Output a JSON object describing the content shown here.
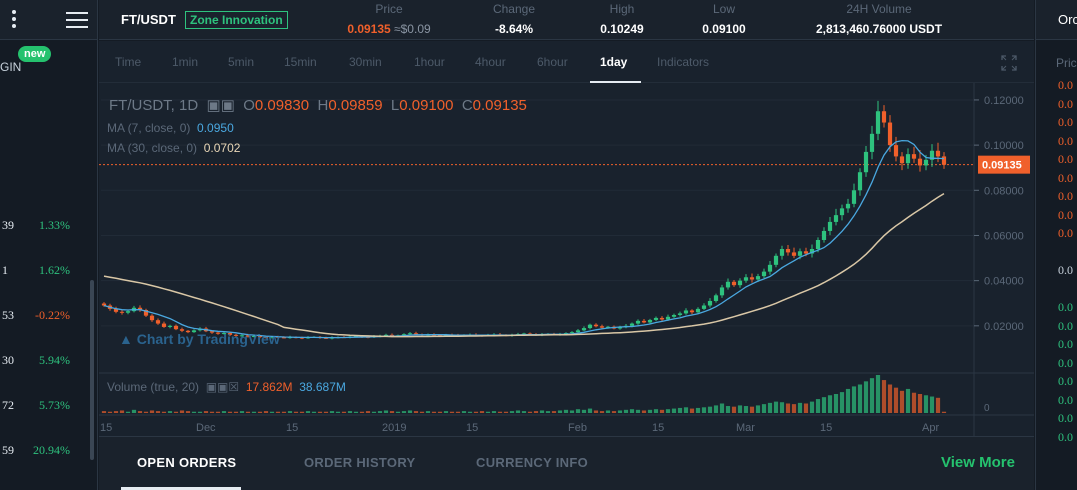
{
  "left": {
    "badge": "new",
    "margin_label": "GIN",
    "rows": [
      {
        "a": "39",
        "b": "1.33%",
        "dir": "up"
      },
      {
        "a": "1",
        "b": "1.62%",
        "dir": "up"
      },
      {
        "a": "53",
        "b": "-0.22%",
        "dir": "down"
      },
      {
        "a": "30",
        "b": "5.94%",
        "dir": "up"
      },
      {
        "a": "72",
        "b": "5.73%",
        "dir": "up"
      },
      {
        "a": "59",
        "b": "20.94%",
        "dir": "up"
      }
    ]
  },
  "header": {
    "pair": "FT/USDT",
    "zone": "Zone Innovation",
    "price_label": "Price",
    "price_value": "0.09135",
    "price_usd": "≈$0.09",
    "change_label": "Change",
    "change_value": "-8.64%",
    "high_label": "High",
    "high_value": "0.10249",
    "low_label": "Low",
    "low_value": "0.09100",
    "volume_label": "24H Volume",
    "volume_value": "2,813,460.76000 USDT"
  },
  "right": {
    "title": "Orc",
    "price_header": "Pric",
    "values": [
      {
        "v": "0.0",
        "dir": "down"
      },
      {
        "v": "0.0",
        "dir": "down"
      },
      {
        "v": "0.0",
        "dir": "down"
      },
      {
        "v": "0.0",
        "dir": "down"
      },
      {
        "v": "0.0",
        "dir": "down"
      },
      {
        "v": "0.0",
        "dir": "down"
      },
      {
        "v": "0.0",
        "dir": "down"
      },
      {
        "v": "0.0",
        "dir": "down"
      },
      {
        "v": "0.0",
        "dir": "down"
      },
      {
        "v": "",
        "dir": "none"
      },
      {
        "v": "0.0",
        "dir": "neutral"
      },
      {
        "v": "",
        "dir": "none"
      },
      {
        "v": "0.0",
        "dir": "up"
      },
      {
        "v": "0.0",
        "dir": "up"
      },
      {
        "v": "0.0",
        "dir": "up"
      },
      {
        "v": "0.0",
        "dir": "up"
      },
      {
        "v": "0.0",
        "dir": "up"
      },
      {
        "v": "0.0",
        "dir": "up"
      },
      {
        "v": "0.0",
        "dir": "up"
      },
      {
        "v": "0.0",
        "dir": "up"
      }
    ]
  },
  "toolbar": {
    "timeframes": [
      "Time",
      "1min",
      "5min",
      "15min",
      "30min",
      "1hour",
      "4hour",
      "6hour",
      "1day",
      "Indicators"
    ],
    "active": "1day"
  },
  "legend": {
    "symbol": "FT/USDT, 1D",
    "o_label": "O",
    "o_value": "0.09830",
    "h_label": "H",
    "h_value": "0.09859",
    "l_label": "L",
    "l_value": "0.09100",
    "c_label": "C",
    "c_value": "0.09135",
    "ma7_label": "MA (7, close, 0)",
    "ma7_value": "0.0950",
    "ma30_label": "MA (30, close, 0)",
    "ma30_value": "0.0702",
    "volume_label": "Volume (true, 20)",
    "volume_v1": "17.862M",
    "volume_v2": "38.687M",
    "watermark": "Chart by TradingView"
  },
  "chart_data": {
    "type": "candlestick",
    "price_axis_ticks": [
      "0.12000",
      "0.10000",
      "0.08000",
      "0.06000",
      "0.04000",
      "0.02000"
    ],
    "price_axis_values": [
      0.12,
      0.1,
      0.08,
      0.06,
      0.04,
      0.02
    ],
    "ylim": [
      0.0,
      0.1275
    ],
    "current_price_label": "0.09135",
    "current_price": 0.09135,
    "volume_axis_tick": "0",
    "x_ticks": [
      "15",
      "Dec",
      "15",
      "2019",
      "15",
      "Feb",
      "15",
      "Mar",
      "15",
      "Apr"
    ],
    "x_tick_days": [
      0,
      16,
      31,
      47,
      61,
      78,
      92,
      106,
      120,
      137
    ],
    "closes": [
      0.029,
      0.0275,
      0.0262,
      0.0258,
      0.0265,
      0.028,
      0.027,
      0.0245,
      0.0225,
      0.021,
      0.0195,
      0.02,
      0.0185,
      0.0178,
      0.0172,
      0.018,
      0.0188,
      0.0176,
      0.017,
      0.0165,
      0.0168,
      0.016,
      0.0156,
      0.0158,
      0.0152,
      0.0155,
      0.015,
      0.0148,
      0.0152,
      0.0149,
      0.0147,
      0.015,
      0.0148,
      0.0146,
      0.0149,
      0.0151,
      0.0147,
      0.0145,
      0.0148,
      0.015,
      0.0149,
      0.0152,
      0.0155,
      0.0151,
      0.0149,
      0.0153,
      0.0157,
      0.016,
      0.0155,
      0.0158,
      0.0163,
      0.0167,
      0.0162,
      0.0158,
      0.0161,
      0.0159,
      0.0157,
      0.016,
      0.0158,
      0.0156,
      0.0159,
      0.0161,
      0.0158,
      0.0157,
      0.016,
      0.0162,
      0.0159,
      0.0157,
      0.016,
      0.0163,
      0.0166,
      0.0162,
      0.016,
      0.0162,
      0.0164,
      0.0161,
      0.0163,
      0.0168,
      0.0172,
      0.018,
      0.019,
      0.0205,
      0.0198,
      0.0192,
      0.0196,
      0.0188,
      0.0194,
      0.02,
      0.021,
      0.0222,
      0.0215,
      0.0226,
      0.0235,
      0.0228,
      0.024,
      0.0248,
      0.0255,
      0.0268,
      0.026,
      0.0275,
      0.029,
      0.031,
      0.0335,
      0.037,
      0.0395,
      0.038,
      0.04,
      0.0415,
      0.0405,
      0.042,
      0.044,
      0.047,
      0.051,
      0.054,
      0.0525,
      0.051,
      0.053,
      0.052,
      0.054,
      0.058,
      0.062,
      0.066,
      0.069,
      0.072,
      0.074,
      0.08,
      0.088,
      0.097,
      0.105,
      0.115,
      0.11,
      0.1,
      0.095,
      0.092,
      0.096,
      0.094,
      0.091,
      0.0935,
      0.0975,
      0.095,
      0.0913
    ],
    "ma30_start": 0.042,
    "ma30_end": 0.0702,
    "volumes": [
      3,
      2,
      3,
      4,
      2,
      5,
      3,
      2,
      4,
      3,
      2,
      3,
      2,
      4,
      3,
      2,
      2,
      3,
      2,
      2,
      3,
      2,
      2,
      3,
      2,
      2,
      2,
      3,
      2,
      2,
      2,
      3,
      2,
      2,
      3,
      2,
      2,
      2,
      3,
      2,
      2,
      3,
      2,
      2,
      3,
      2,
      3,
      4,
      3,
      2,
      3,
      4,
      3,
      2,
      3,
      2,
      2,
      3,
      2,
      2,
      3,
      2,
      2,
      3,
      2,
      3,
      2,
      2,
      3,
      4,
      3,
      2,
      3,
      4,
      3,
      3,
      4,
      5,
      4,
      6,
      5,
      7,
      4,
      3,
      4,
      3,
      4,
      5,
      6,
      5,
      4,
      5,
      6,
      5,
      6,
      7,
      8,
      9,
      7,
      8,
      9,
      10,
      12,
      15,
      11,
      10,
      12,
      11,
      10,
      12,
      14,
      16,
      18,
      17,
      15,
      14,
      16,
      15,
      18,
      22,
      25,
      28,
      30,
      33,
      38,
      42,
      45,
      50,
      55,
      60,
      52,
      45,
      40,
      35,
      38,
      32,
      30,
      28,
      26,
      24
    ],
    "volume_max": 60
  },
  "tabs": {
    "open_orders": "OPEN ORDERS",
    "order_history": "ORDER HISTORY",
    "currency_info": "CURRENCY INFO",
    "view_more": "View More"
  },
  "colors": {
    "up": "#2ec27e",
    "down": "#f0602b",
    "ma7": "#4aa8e0",
    "ma30": "#d9c7a6",
    "bg": "#19222d"
  }
}
